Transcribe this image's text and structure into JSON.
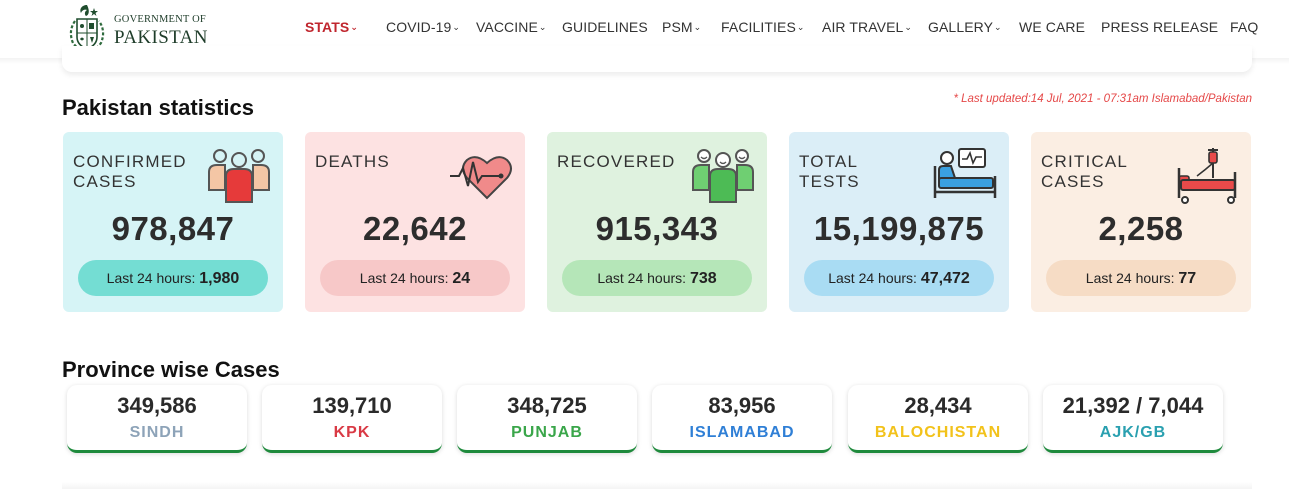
{
  "logo": {
    "line1": "GOVERNMENT OF",
    "line2": "PAKISTAN"
  },
  "nav": [
    {
      "label": "STATS",
      "dropdown": true,
      "active": true
    },
    {
      "label": "COVID-19",
      "dropdown": true
    },
    {
      "label": "VACCINE",
      "dropdown": true
    },
    {
      "label": "GUIDELINES",
      "dropdown": false
    },
    {
      "label": "PSM",
      "dropdown": true
    },
    {
      "label": "FACILITIES",
      "dropdown": true
    },
    {
      "label": "AIR TRAVEL",
      "dropdown": true
    },
    {
      "label": "GALLERY",
      "dropdown": true
    },
    {
      "label": "WE CARE",
      "dropdown": false
    },
    {
      "label": "PRESS RELEASE",
      "dropdown": false
    },
    {
      "label": "FAQ",
      "dropdown": false
    }
  ],
  "chevron": "⌄",
  "stats": {
    "title": "Pakistan statistics",
    "last_updated": "* Last updated:14 Jul, 2021 - 07:31am Islamabad/Pakistan",
    "pill_label": "Last 24 hours:",
    "cards": [
      {
        "title": "CONFIRMED\nCASES",
        "value": "978,847",
        "last24": "1,980",
        "icon": "people-icon",
        "bg": "#d6f4f6",
        "pill_bg": "#74ddd3"
      },
      {
        "title": "DEATHS",
        "value": "22,642",
        "last24": "24",
        "icon": "heartbeat-icon",
        "bg": "#fde2e2",
        "pill_bg": "#f7c8c8"
      },
      {
        "title": "RECOVERED",
        "value": "915,343",
        "last24": "738",
        "icon": "recovered-people-icon",
        "bg": "#dff2df",
        "pill_bg": "#b5e6b8"
      },
      {
        "title": "TOTAL\nTESTS",
        "value": "15,199,875",
        "last24": "47,472",
        "icon": "patient-bed-monitor-icon",
        "bg": "#dbeef7",
        "pill_bg": "#a9dcf3"
      },
      {
        "title": "CRITICAL\nCASES",
        "value": "2,258",
        "last24": "77",
        "icon": "hospital-bed-drip-icon",
        "bg": "#fbeee3",
        "pill_bg": "#f6dcc5"
      }
    ]
  },
  "provinces": {
    "title": "Province wise Cases",
    "items": [
      {
        "value": "349,586",
        "name": "SINDH",
        "color": "#8da3b8"
      },
      {
        "value": "139,710",
        "name": "KPK",
        "color": "#d93a45"
      },
      {
        "value": "348,725",
        "name": "PUNJAB",
        "color": "#3aa64a"
      },
      {
        "value": "83,956",
        "name": "ISLAMABAD",
        "color": "#2f7fd6"
      },
      {
        "value": "28,434",
        "name": "BALOCHISTAN",
        "color": "#f2c21b"
      },
      {
        "value": "21,392 / 7,044",
        "name": "AJK/GB",
        "color": "#2aa0b0"
      }
    ]
  }
}
